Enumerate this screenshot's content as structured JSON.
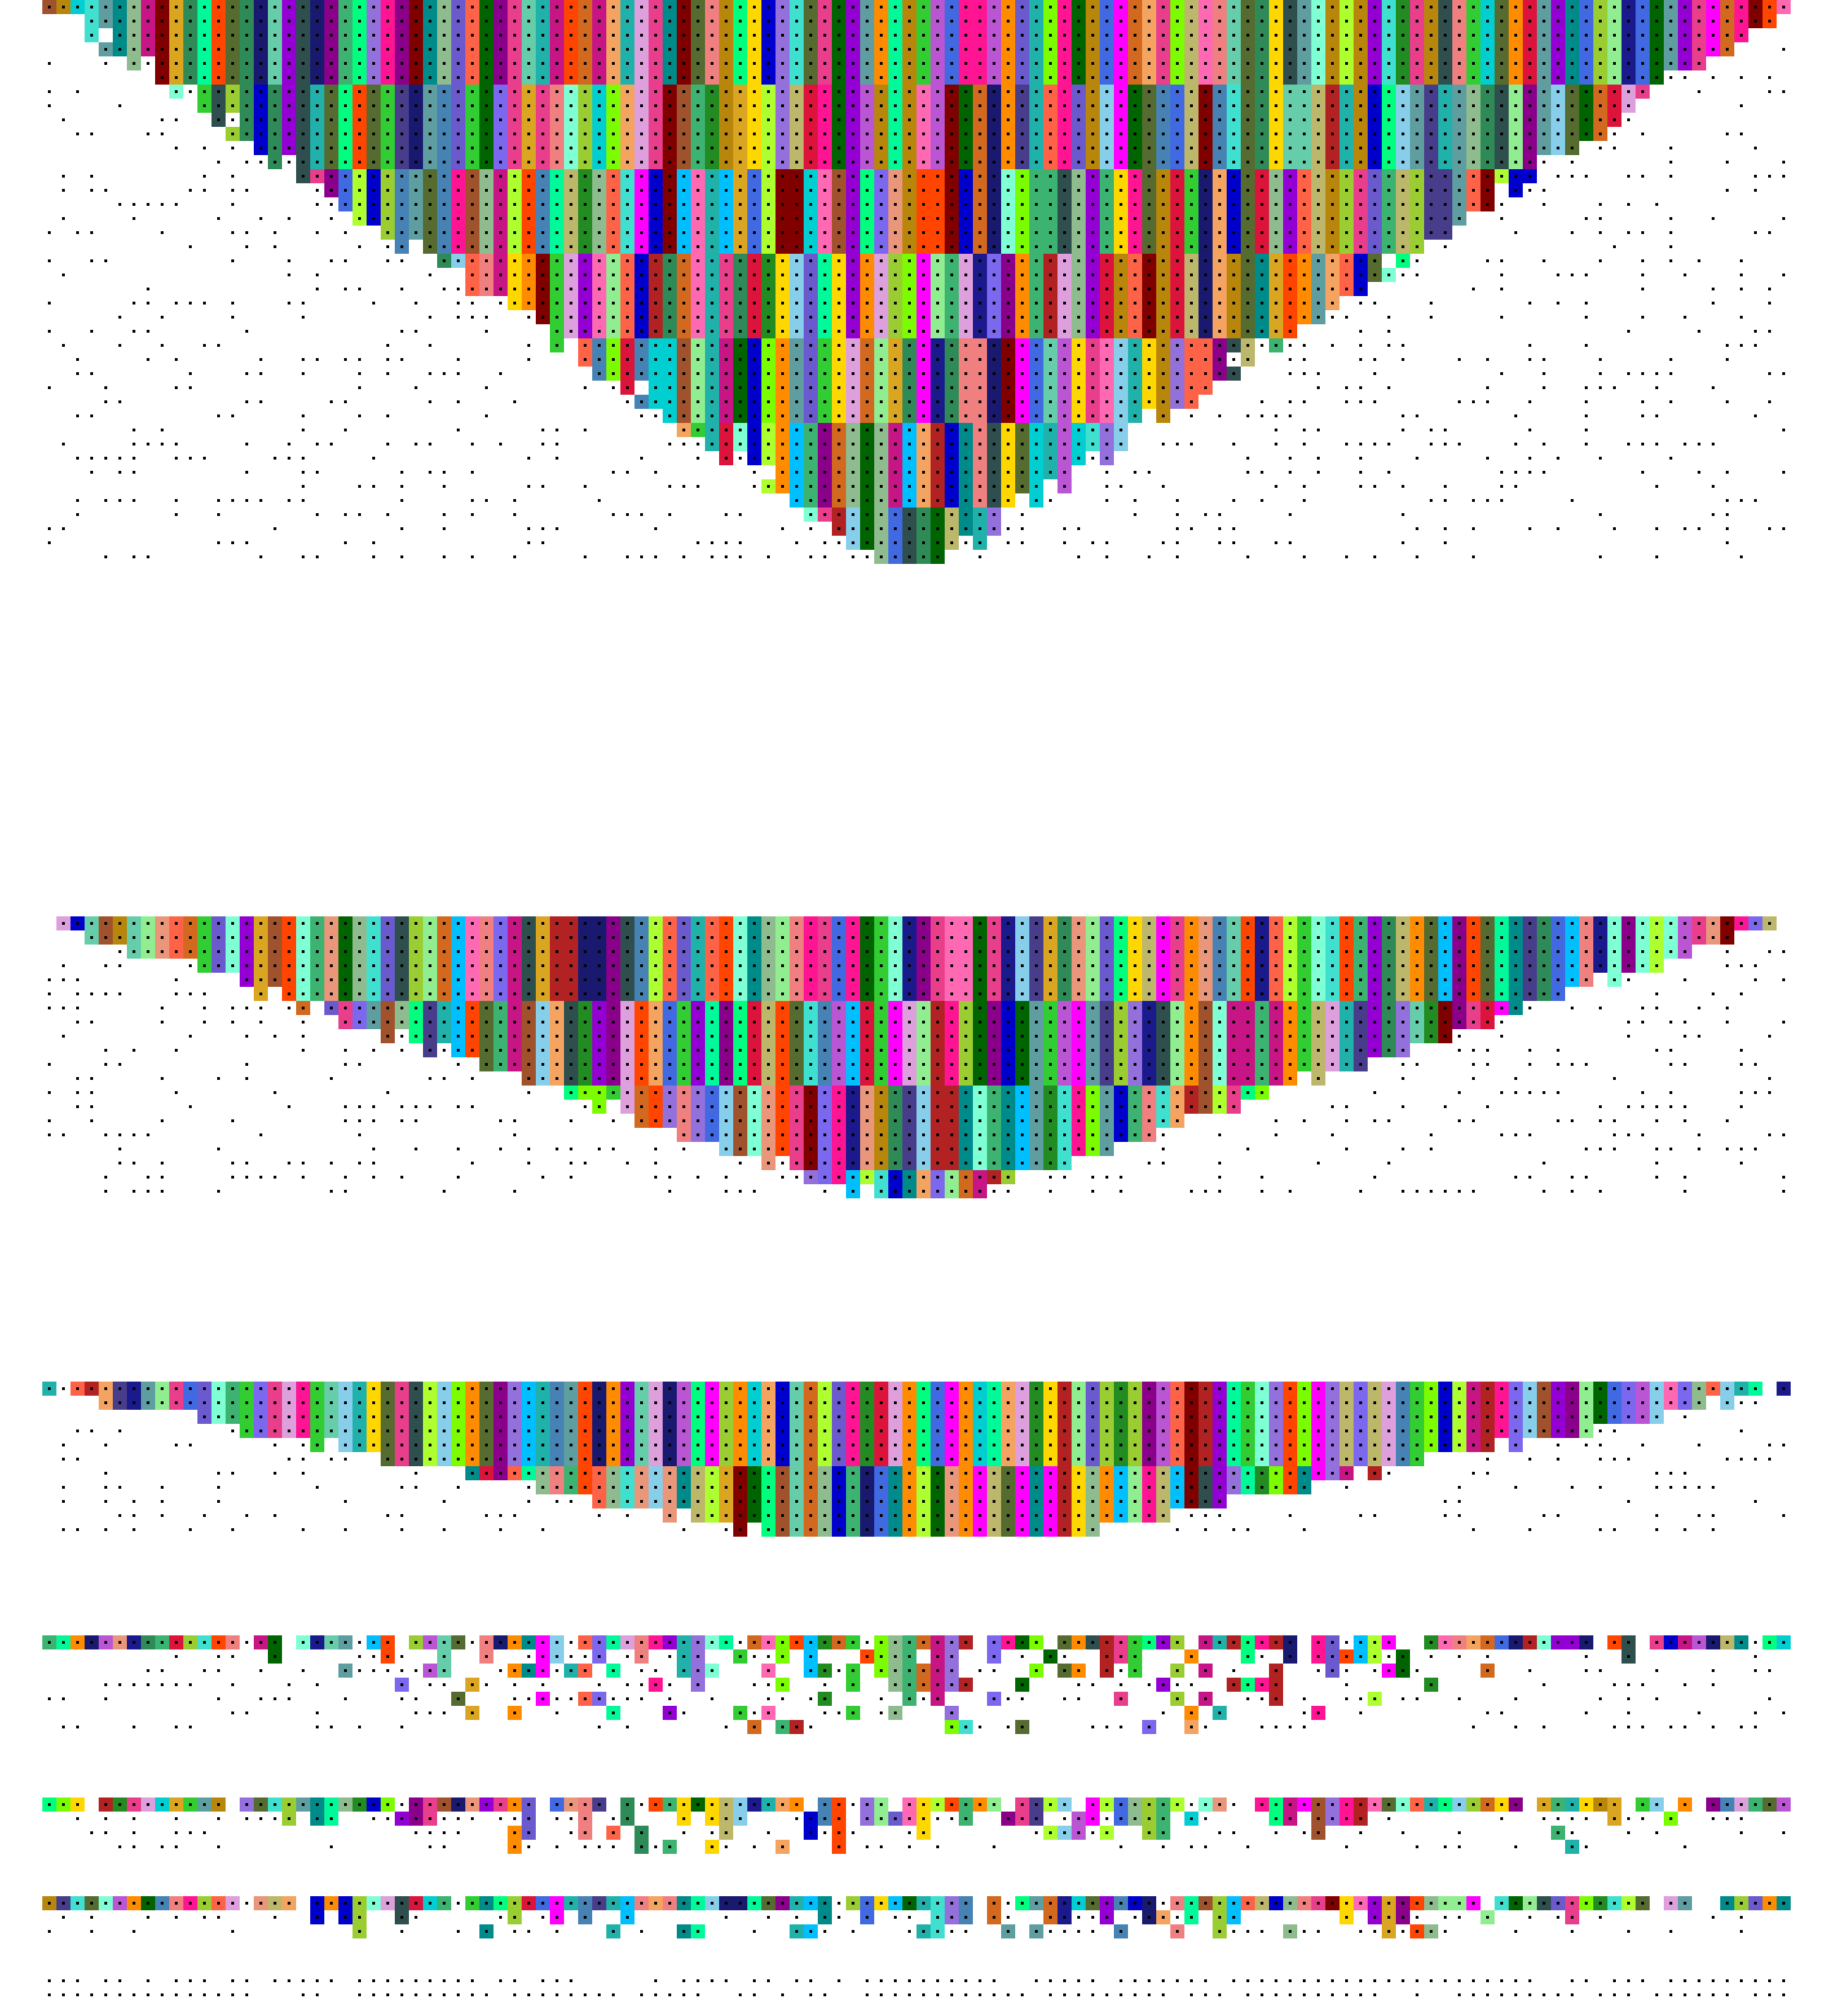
{
  "artwork": {
    "description_label": "",
    "background": "#ffffff",
    "dot_color": "#000000",
    "palette": [
      "#1a1a8c",
      "#e83e8c",
      "#7fffd4",
      "#ff6347",
      "#6a5acd",
      "#3cb371",
      "#ffd700",
      "#8b008b",
      "#00bfff",
      "#adff2f",
      "#dc143c",
      "#20b2aa",
      "#9370db",
      "#ff8c00",
      "#2e8b57",
      "#ff1493",
      "#4682b4",
      "#9acd32",
      "#c71585",
      "#00ced1",
      "#8fbc8f",
      "#b8860b",
      "#5f9ea0",
      "#ff69b4",
      "#483d8b",
      "#32cd32",
      "#d2691e",
      "#00fa9a",
      "#800000",
      "#7b68ee",
      "#66cdaa",
      "#ba55d3",
      "#228b22",
      "#f08080",
      "#4169e1",
      "#daa520",
      "#008b8b",
      "#ff4500",
      "#9400d3",
      "#90ee90",
      "#191970",
      "#e9967a",
      "#556b2f",
      "#00ff7f",
      "#b22222",
      "#87ceeb",
      "#dda0dd",
      "#2f4f4f",
      "#bdb76b",
      "#ff00ff",
      "#40e0d0",
      "#a0522d",
      "#7cfc00",
      "#0000cd",
      "#f4a460",
      "#006400"
    ],
    "bands": [
      {
        "kind": "triangle",
        "rows": 40,
        "seed": 11
      },
      {
        "kind": "triangle",
        "rows": 20,
        "seed": 23
      },
      {
        "kind": "wedge",
        "rows": 11,
        "seed": 37
      },
      {
        "kind": "fringe",
        "rows": 7,
        "seed": 41
      },
      {
        "kind": "fringe",
        "rows": 4,
        "seed": 53
      },
      {
        "kind": "fringe",
        "rows": 3,
        "seed": 67
      },
      {
        "kind": "dots",
        "rows": 2,
        "seed": 79
      }
    ]
  }
}
